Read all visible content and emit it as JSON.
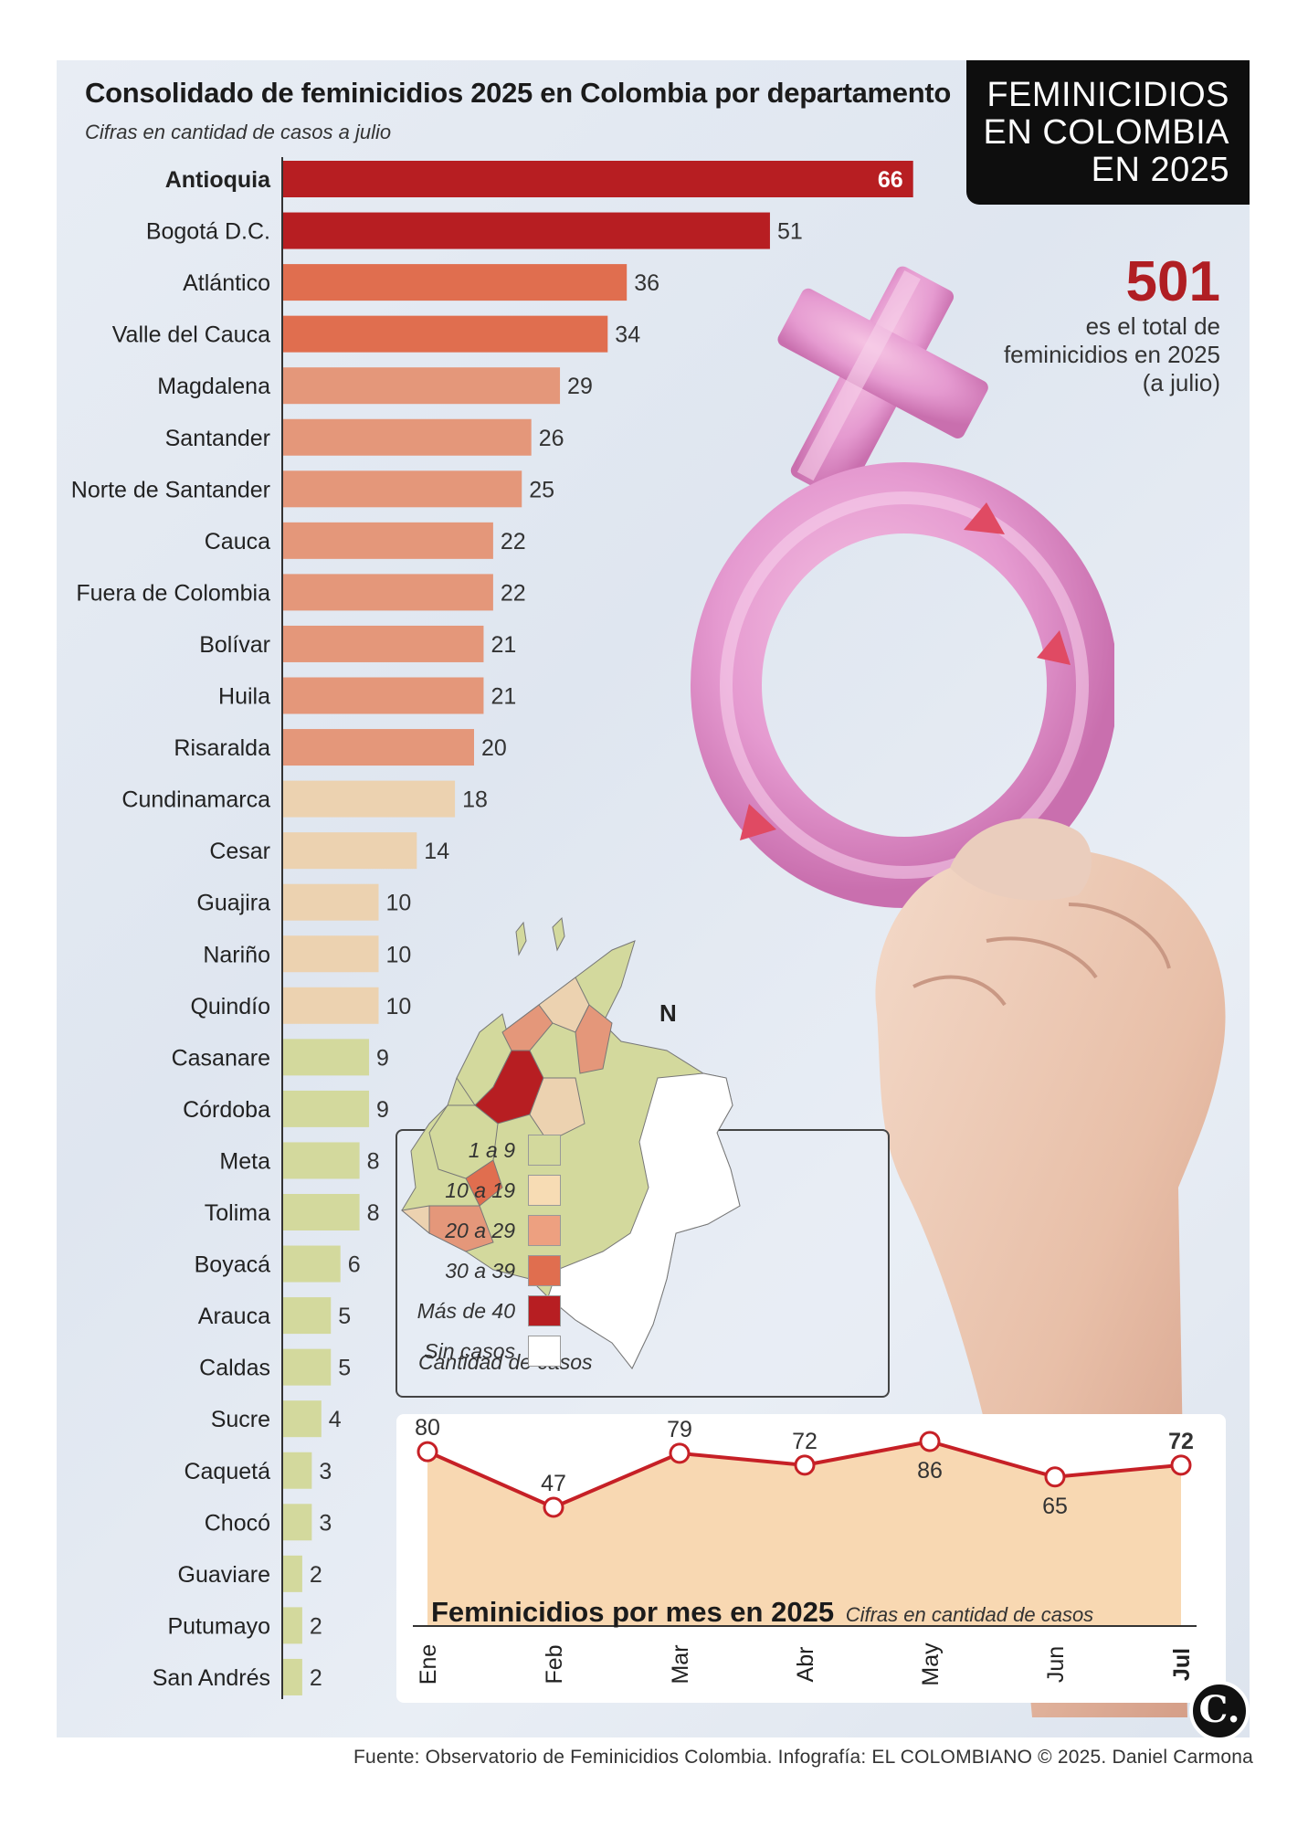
{
  "header": {
    "title": "Consolidado de feminicidios 2025 en Colombia por departamento",
    "subtitle": "Cifras en cantidad de casos a julio",
    "headline_lines": [
      "FEMINICIDIOS",
      "EN COLOMBIA",
      "EN 2025"
    ]
  },
  "total": {
    "number": "501",
    "text": "es el total de feminicidios en 2025 (a julio)"
  },
  "colors": {
    "mas_de_40": "#b71e22",
    "30_a_39": "#e06e4f",
    "20_a_29": "#e4977a",
    "10_a_19": "#ecd2b0",
    "1_a_9": "#d3d99d",
    "sin_casos": "#ffffff",
    "line": "#c62026",
    "area": "#f8d8b2"
  },
  "map": {
    "caption": "Cantidad de casos",
    "north_label": "N",
    "legend": [
      {
        "label": "1 a 9",
        "color": "#d3d99d"
      },
      {
        "label": "10 a 19",
        "color": "#f7dcb4"
      },
      {
        "label": "20 a 29",
        "color": "#eda080"
      },
      {
        "label": "30 a 39",
        "color": "#e06e4f"
      },
      {
        "label": "Más de 40",
        "color": "#b71e22"
      },
      {
        "label": "Sin casos",
        "color": "#ffffff"
      }
    ]
  },
  "monthly": {
    "title": "Feminicidios por mes en 2025",
    "subtitle": "Cifras en cantidad de casos"
  },
  "chart_data": [
    {
      "type": "bar",
      "orientation": "horizontal",
      "title": "Consolidado de feminicidios 2025 en Colombia por departamento",
      "subtitle": "Cifras en cantidad de casos a julio",
      "categories": [
        "Antioquia",
        "Bogotá D.C.",
        "Atlántico",
        "Valle del Cauca",
        "Magdalena",
        "Santander",
        "Norte de Santander",
        "Cauca",
        "Fuera de Colombia",
        "Bolívar",
        "Huila",
        "Risaralda",
        "Cundinamarca",
        "Cesar",
        "Guajira",
        "Nariño",
        "Quindío",
        "Casanare",
        "Córdoba",
        "Meta",
        "Tolima",
        "Boyacá",
        "Arauca",
        "Caldas",
        "Sucre",
        "Caquetá",
        "Chocó",
        "Guaviare",
        "Putumayo",
        "San Andrés"
      ],
      "values": [
        66,
        51,
        36,
        34,
        29,
        26,
        25,
        22,
        22,
        21,
        21,
        20,
        18,
        14,
        10,
        10,
        10,
        9,
        9,
        8,
        8,
        6,
        5,
        5,
        4,
        3,
        3,
        2,
        2,
        2
      ],
      "xlim": [
        0,
        66
      ]
    },
    {
      "type": "area",
      "title": "Feminicidios por mes en 2025",
      "subtitle": "Cifras en cantidad de casos",
      "categories": [
        "Ene",
        "Feb",
        "Mar",
        "Abr",
        "May",
        "Jun",
        "Jul"
      ],
      "values": [
        80,
        47,
        79,
        72,
        86,
        65,
        72
      ]
    }
  ],
  "source": "Fuente: Observatorio de Feminicidios Colombia. Infografía: EL COLOMBIANO © 2025. Daniel Carmona",
  "logo_text": "C."
}
